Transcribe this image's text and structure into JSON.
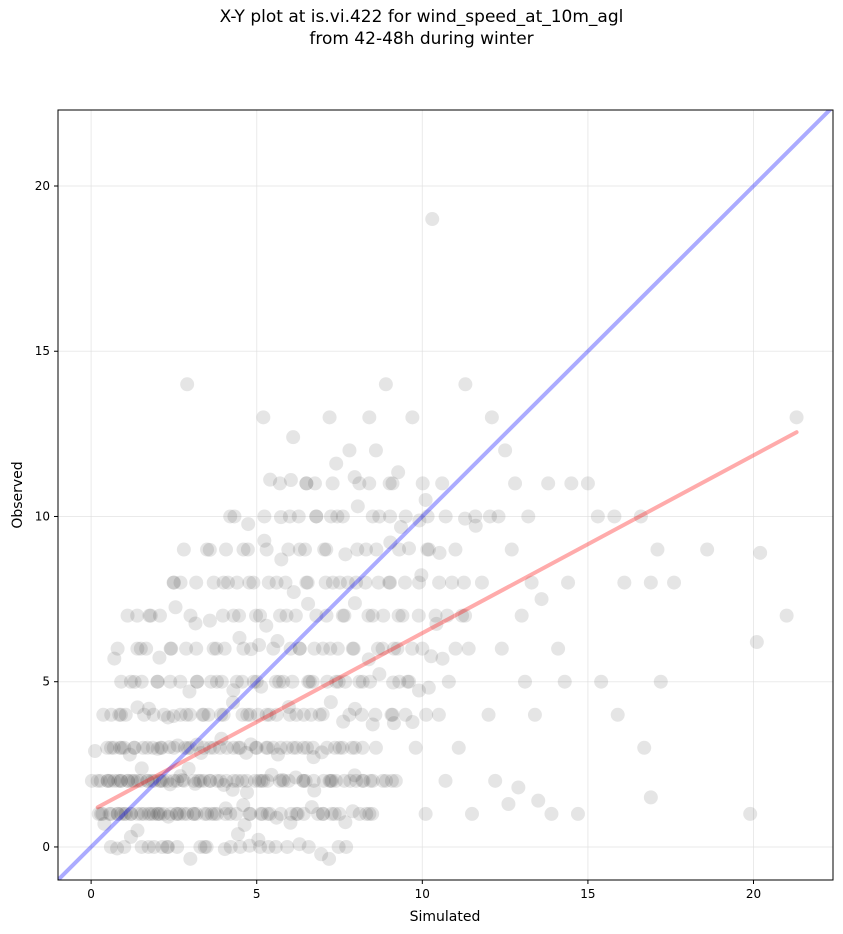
{
  "chart_data": {
    "type": "scatter",
    "title": "X-Y plot at is.vi.422 for wind_speed_at_10m_agl",
    "subtitle": "from 42-48h during winter",
    "xlabel": "Simulated",
    "ylabel": "Observed",
    "xlim": [
      -1,
      22.4
    ],
    "ylim": [
      -1,
      22.3
    ],
    "xticks": [
      0,
      5,
      10,
      15,
      20
    ],
    "yticks": [
      0,
      5,
      10,
      15,
      20
    ],
    "xtick_labels": [
      "0",
      "5",
      "10",
      "15",
      "20"
    ],
    "ytick_labels": [
      "0",
      "5",
      "10",
      "15",
      "20"
    ],
    "grid": true,
    "colors": {
      "points": "#000000",
      "identity_line": "#0000ff",
      "fit_line": "#ff0000",
      "grid": "#dddddd"
    },
    "point_opacity": 0.1,
    "dense_points_note_free": true,
    "reference_lines": [
      {
        "kind": "identity",
        "points": [
          [
            -1,
            -1
          ],
          [
            22.4,
            22.4
          ]
        ],
        "color": "#0000ff"
      },
      {
        "kind": "fit",
        "points": [
          [
            0.2,
            1.2
          ],
          [
            21.3,
            12.55
          ]
        ],
        "color": "#ff0000"
      }
    ],
    "points": [
      [
        0.2,
        2
      ],
      [
        0.3,
        1
      ],
      [
        0.4,
        0.7
      ],
      [
        0.5,
        2
      ],
      [
        0.6,
        1
      ],
      [
        0.6,
        3
      ],
      [
        0.7,
        2
      ],
      [
        0.7,
        5.7
      ],
      [
        0.8,
        1
      ],
      [
        0.8,
        6
      ],
      [
        0.9,
        2
      ],
      [
        0.9,
        4
      ],
      [
        1.0,
        1
      ],
      [
        1.0,
        0
      ],
      [
        1.0,
        3
      ],
      [
        1.1,
        2
      ],
      [
        1.1,
        7
      ],
      [
        1.2,
        1
      ],
      [
        1.2,
        5
      ],
      [
        1.3,
        2
      ],
      [
        1.3,
        3
      ],
      [
        1.4,
        1
      ],
      [
        1.4,
        0.5
      ],
      [
        1.5,
        2
      ],
      [
        1.5,
        6
      ],
      [
        1.6,
        1
      ],
      [
        1.6,
        4
      ],
      [
        1.7,
        2
      ],
      [
        1.7,
        3
      ],
      [
        1.8,
        1
      ],
      [
        1.8,
        7
      ],
      [
        1.9,
        0
      ],
      [
        1.9,
        2
      ],
      [
        2.0,
        1
      ],
      [
        2.0,
        5
      ],
      [
        2.1,
        2
      ],
      [
        2.1,
        3
      ],
      [
        2.2,
        1
      ],
      [
        2.2,
        4
      ],
      [
        2.3,
        2
      ],
      [
        2.3,
        0
      ],
      [
        2.4,
        1
      ],
      [
        2.4,
        6
      ],
      [
        2.5,
        3
      ],
      [
        2.5,
        8
      ],
      [
        2.6,
        2
      ],
      [
        2.6,
        1
      ],
      [
        2.7,
        4
      ],
      [
        2.8,
        2
      ],
      [
        2.8,
        9
      ],
      [
        2.9,
        1
      ],
      [
        2.9,
        14
      ],
      [
        3.0,
        3
      ],
      [
        3.0,
        7
      ],
      [
        3.1,
        2
      ],
      [
        3.1,
        1
      ],
      [
        3.2,
        5
      ],
      [
        3.3,
        2
      ],
      [
        3.3,
        0
      ],
      [
        3.4,
        4
      ],
      [
        3.4,
        3
      ],
      [
        3.5,
        1
      ],
      [
        3.5,
        9
      ],
      [
        3.6,
        2
      ],
      [
        3.7,
        6
      ],
      [
        3.7,
        3
      ],
      [
        3.8,
        1
      ],
      [
        3.8,
        5
      ],
      [
        3.9,
        2
      ],
      [
        4.0,
        8
      ],
      [
        4.0,
        4
      ],
      [
        4.1,
        3
      ],
      [
        4.2,
        1
      ],
      [
        4.2,
        10
      ],
      [
        4.3,
        2
      ],
      [
        4.3,
        7
      ],
      [
        4.4,
        5
      ],
      [
        4.5,
        0
      ],
      [
        4.5,
        3
      ],
      [
        4.6,
        6
      ],
      [
        4.6,
        9
      ],
      [
        4.7,
        2
      ],
      [
        4.8,
        4
      ],
      [
        4.8,
        1
      ],
      [
        4.9,
        8
      ],
      [
        5.0,
        3
      ],
      [
        5.0,
        5
      ],
      [
        5.1,
        7
      ],
      [
        5.1,
        0
      ],
      [
        5.2,
        2
      ],
      [
        5.2,
        13
      ],
      [
        5.3,
        9
      ],
      [
        5.3,
        4
      ],
      [
        5.4,
        1
      ],
      [
        5.5,
        6
      ],
      [
        5.5,
        3
      ],
      [
        5.6,
        8
      ],
      [
        5.7,
        11
      ],
      [
        5.7,
        2
      ],
      [
        5.8,
        5
      ],
      [
        5.9,
        7
      ],
      [
        6.0,
        4
      ],
      [
        6.0,
        10
      ],
      [
        6.1,
        3
      ],
      [
        6.1,
        12.4
      ],
      [
        6.2,
        1
      ],
      [
        6.3,
        6
      ],
      [
        6.3,
        9
      ],
      [
        6.4,
        2
      ],
      [
        6.5,
        8
      ],
      [
        6.5,
        11
      ],
      [
        6.6,
        5
      ],
      [
        6.7,
        3
      ],
      [
        6.8,
        7
      ],
      [
        6.8,
        10
      ],
      [
        6.9,
        4
      ],
      [
        7.0,
        1
      ],
      [
        7.0,
        6
      ],
      [
        7.1,
        9
      ],
      [
        7.2,
        2
      ],
      [
        7.2,
        13
      ],
      [
        7.3,
        8
      ],
      [
        7.4,
        5
      ],
      [
        7.4,
        11.6
      ],
      [
        7.5,
        3
      ],
      [
        7.6,
        7
      ],
      [
        7.6,
        10
      ],
      [
        7.7,
        0
      ],
      [
        7.8,
        4
      ],
      [
        7.8,
        12
      ],
      [
        7.9,
        6
      ],
      [
        8.0,
        8
      ],
      [
        8.0,
        2
      ],
      [
        8.1,
        11
      ],
      [
        8.2,
        5
      ],
      [
        8.3,
        9
      ],
      [
        8.4,
        13
      ],
      [
        8.4,
        1
      ],
      [
        8.5,
        7
      ],
      [
        8.6,
        12
      ],
      [
        8.6,
        3
      ],
      [
        8.7,
        10
      ],
      [
        8.8,
        6
      ],
      [
        8.9,
        14
      ],
      [
        9.0,
        8
      ],
      [
        9.1,
        4
      ],
      [
        9.1,
        11
      ],
      [
        9.2,
        2
      ],
      [
        9.3,
        9
      ],
      [
        9.4,
        7
      ],
      [
        9.5,
        10
      ],
      [
        9.6,
        5
      ],
      [
        9.7,
        13
      ],
      [
        9.8,
        3
      ],
      [
        9.9,
        8
      ],
      [
        10.0,
        6
      ],
      [
        10.1,
        1
      ],
      [
        10.1,
        10.5
      ],
      [
        10.2,
        9
      ],
      [
        10.3,
        19
      ],
      [
        10.4,
        7
      ],
      [
        10.5,
        4
      ],
      [
        10.6,
        11
      ],
      [
        10.7,
        2
      ],
      [
        10.8,
        5
      ],
      [
        11.0,
        9
      ],
      [
        11.1,
        3
      ],
      [
        11.2,
        7
      ],
      [
        11.3,
        14
      ],
      [
        11.4,
        6
      ],
      [
        11.5,
        1
      ],
      [
        11.6,
        10
      ],
      [
        11.8,
        8
      ],
      [
        12.0,
        4
      ],
      [
        12.1,
        13
      ],
      [
        12.2,
        2
      ],
      [
        12.3,
        10
      ],
      [
        12.4,
        6
      ],
      [
        12.5,
        12
      ],
      [
        12.6,
        1.3
      ],
      [
        12.7,
        9
      ],
      [
        12.8,
        11
      ],
      [
        12.9,
        1.8
      ],
      [
        13.0,
        7
      ],
      [
        13.1,
        5
      ],
      [
        13.2,
        10
      ],
      [
        13.3,
        8
      ],
      [
        13.4,
        4
      ],
      [
        13.5,
        1.4
      ],
      [
        13.6,
        7.5
      ],
      [
        13.8,
        11
      ],
      [
        13.9,
        1
      ],
      [
        14.1,
        6
      ],
      [
        14.3,
        5
      ],
      [
        14.4,
        8
      ],
      [
        14.5,
        11
      ],
      [
        14.7,
        1
      ],
      [
        15.0,
        11
      ],
      [
        15.3,
        10
      ],
      [
        15.4,
        5
      ],
      [
        15.8,
        10
      ],
      [
        15.9,
        4
      ],
      [
        16.1,
        8
      ],
      [
        16.6,
        10
      ],
      [
        16.7,
        3
      ],
      [
        16.9,
        1.5
      ],
      [
        16.9,
        8
      ],
      [
        17.1,
        9
      ],
      [
        17.2,
        5
      ],
      [
        17.6,
        8
      ],
      [
        18.6,
        9
      ],
      [
        19.9,
        1
      ],
      [
        20.1,
        6.2
      ],
      [
        20.2,
        8.9
      ],
      [
        21.0,
        7
      ],
      [
        21.3,
        13
      ]
    ]
  }
}
